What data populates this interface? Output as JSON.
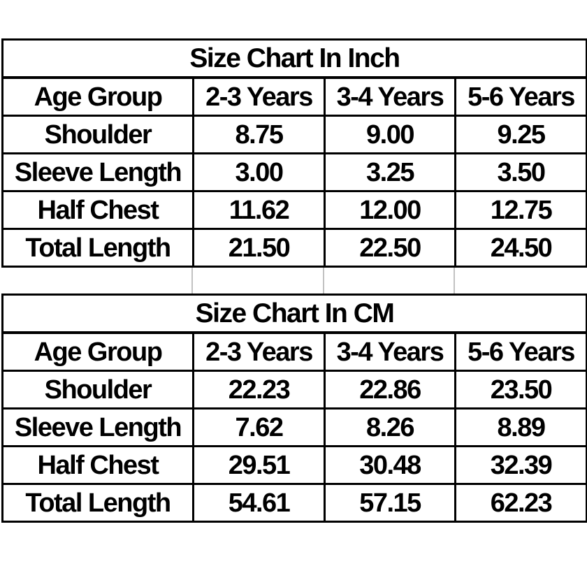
{
  "colors": {
    "background": "#ffffff",
    "border": "#000000",
    "text": "#000000",
    "spacer_gridline": "#c2c2c2"
  },
  "chart_data": [
    {
      "type": "table",
      "title": "Size Chart In Inch",
      "unit": "inch",
      "columns": [
        "Age Group",
        "2-3 Years",
        "3-4 Years",
        "5-6 Years"
      ],
      "rows": [
        [
          "Shoulder",
          "8.75",
          "9.00",
          "9.25"
        ],
        [
          "Sleeve Length",
          "3.00",
          "3.25",
          "3.50"
        ],
        [
          "Half Chest",
          "11.62",
          "12.00",
          "12.75"
        ],
        [
          "Total Length",
          "21.50",
          "22.50",
          "24.50"
        ]
      ]
    },
    {
      "type": "table",
      "title": "Size Chart In CM",
      "unit": "cm",
      "columns": [
        "Age Group",
        "2-3 Years",
        "3-4 Years",
        "5-6 Years"
      ],
      "rows": [
        [
          "Shoulder",
          "22.23",
          "22.86",
          "23.50"
        ],
        [
          "Sleeve Length",
          "7.62",
          "8.26",
          "8.89"
        ],
        [
          "Half Chest",
          "29.51",
          "30.48",
          "32.39"
        ],
        [
          "Total Length",
          "54.61",
          "57.15",
          "62.23"
        ]
      ]
    }
  ]
}
